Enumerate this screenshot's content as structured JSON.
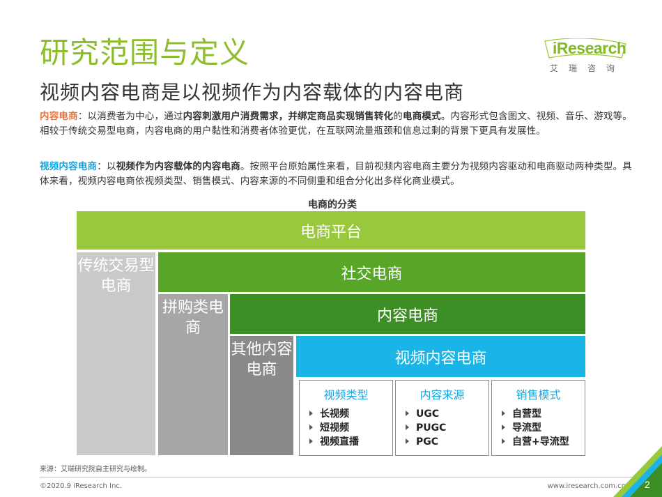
{
  "header": {
    "title": "研究范围与定义",
    "subtitle": "视频内容电商是以视频作为内容载体的内容电商"
  },
  "logo": {
    "brand": "iResearch",
    "tagline": "艾瑞咨询"
  },
  "definitions": {
    "p1": {
      "term": "内容电商",
      "t1": "：以消费者为中心，通过",
      "b1": "内容刺激用户消费需求，并绑定商品实现销售转化",
      "t2": "的",
      "b2": "电商模式",
      "t3": "。内容形式包含图文、视频、音乐、游戏等。相较于传统交易型电商，内容电商的用户黏性和消费者体验更优，在互联网流量瓶颈和信息过剩的背景下更具有发展性。"
    },
    "p2": {
      "term": "视频内容电商",
      "t1": "：以",
      "b1": "视频作为内容载体的内容电商",
      "t2": "。按照平台原始属性来看，目前视频内容电商主要分为视频内容驱动和电商驱动两种类型。具体来看，视频内容电商依视频类型、销售模式、内容来源的不同侧重和组合分化出多样化商业模式。"
    }
  },
  "diagram": {
    "title": "电商的分类",
    "platform": "电商平台",
    "traditional": "传统交易型电商",
    "social": "社交电商",
    "groupbuy": "拼购类电商",
    "content": "内容电商",
    "other": "其他内容电商",
    "video": "视频内容电商",
    "categories": [
      {
        "title": "视频类型",
        "items": [
          "长视频",
          "短视频",
          "视频直播"
        ]
      },
      {
        "title": "内容来源",
        "items": [
          "UGC",
          "PUGC",
          "PGC"
        ]
      },
      {
        "title": "销售模式",
        "items": [
          "自营型",
          "导流型",
          "自营+导流型"
        ]
      }
    ]
  },
  "footer": {
    "source": "来源：艾瑞研究院自主研究与绘制。",
    "copyright": "©2020.9 iResearch Inc.",
    "website": "www.iresearch.com.cn",
    "page": "2"
  },
  "colors": {
    "title_green": "#8cbd2c",
    "platform_green": "#9ac83d",
    "social_green": "#57a627",
    "content_green": "#3e8e26",
    "video_blue": "#1bb4e6",
    "term_orange": "#e8763b",
    "term_blue": "#1ba5de"
  }
}
